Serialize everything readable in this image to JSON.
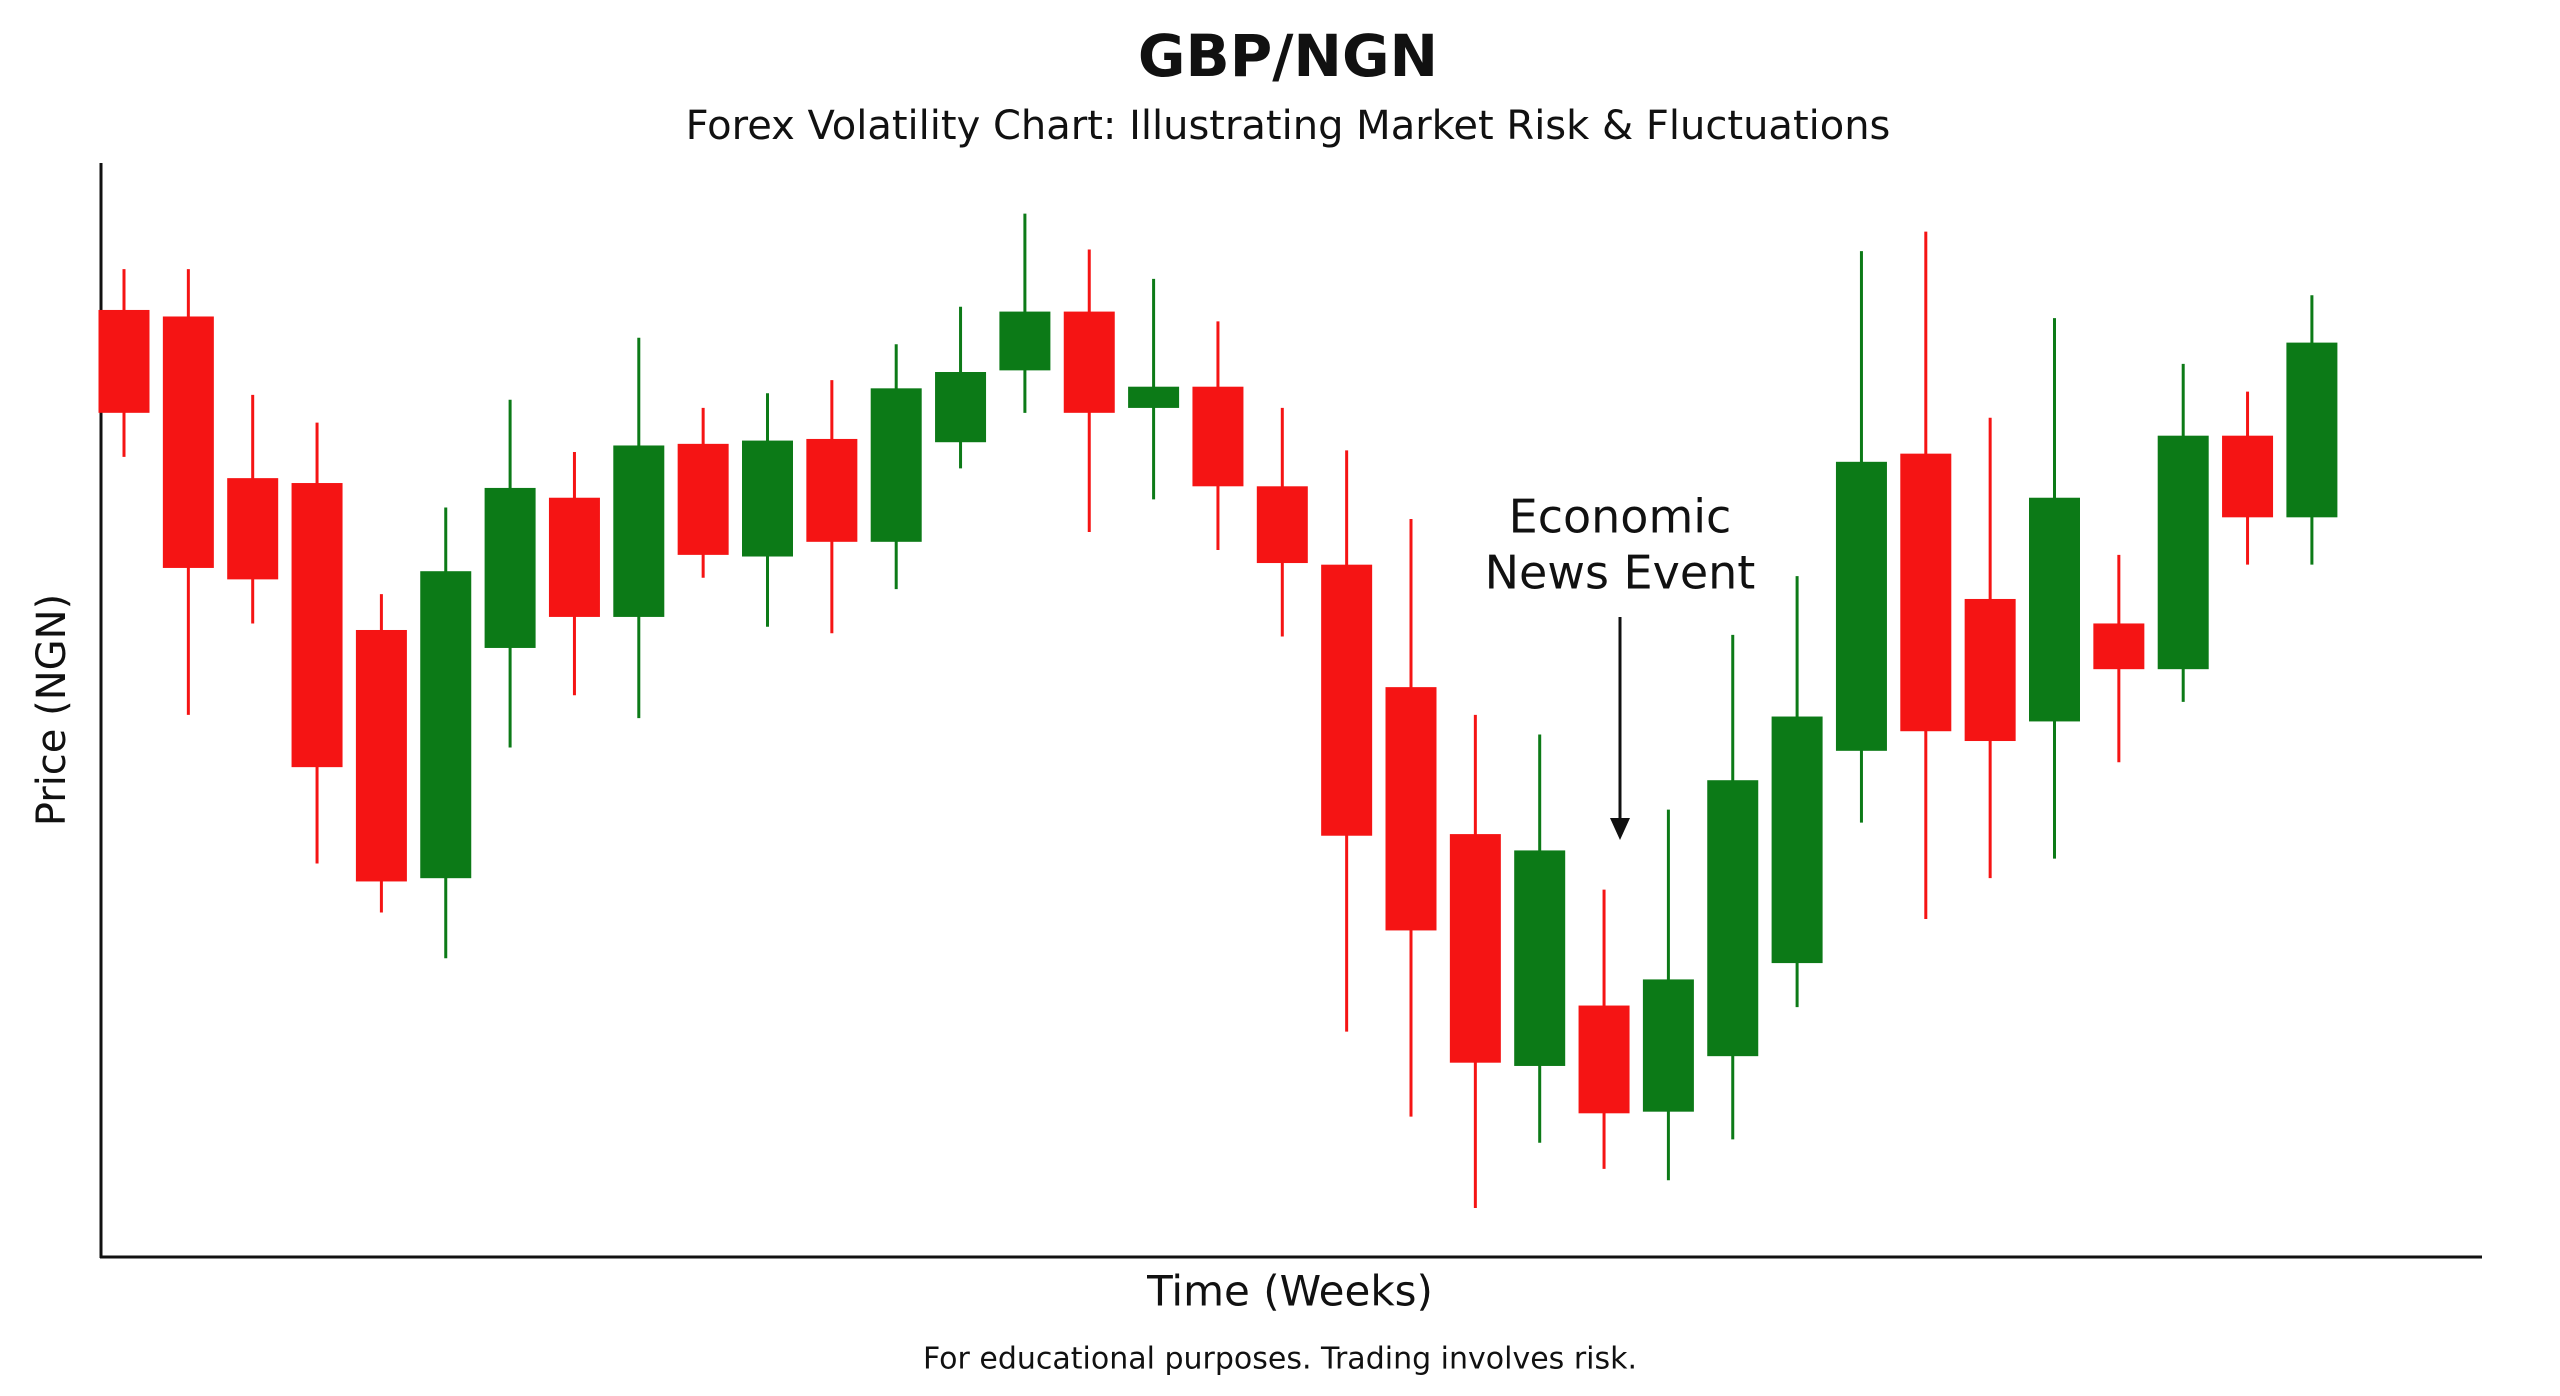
{
  "chart_data": {
    "type": "candlestick",
    "title": "GBP/NGN",
    "subtitle": "Forex Volatility Chart: Illustrating Market Risk & Fluctuations",
    "x_label": "Time (Weeks)",
    "y_label": "Price (NGN)",
    "note": "For educational purposes. Trading involves risk.",
    "annotation": [
      "Economic",
      "News Event"
    ],
    "up_color": "#0c7a17",
    "down_color": "#f51414",
    "ylim": [
      0,
      670
    ],
    "open": [
      580,
      576,
      477,
      474,
      384,
      232,
      373,
      465,
      392,
      498,
      429,
      501,
      438,
      499,
      543,
      579,
      520,
      533,
      472,
      424,
      349,
      259,
      117,
      154,
      89,
      123,
      180,
      310,
      492,
      403,
      328,
      388,
      360,
      503,
      453
    ],
    "high": [
      605,
      605,
      528,
      511,
      406,
      459,
      525,
      493,
      563,
      520,
      529,
      537,
      559,
      582,
      639,
      617,
      599,
      573,
      520,
      494,
      452,
      332,
      320,
      225,
      274,
      381,
      417,
      616,
      628,
      514,
      575,
      430,
      547,
      530,
      589
    ],
    "low": [
      490,
      332,
      388,
      241,
      211,
      183,
      312,
      344,
      330,
      416,
      386,
      382,
      409,
      483,
      517,
      444,
      464,
      433,
      380,
      138,
      86,
      30,
      70,
      54,
      47,
      72,
      153,
      266,
      207,
      232,
      244,
      303,
      340,
      424,
      424
    ],
    "close": [
      517,
      422,
      415,
      300,
      230,
      420,
      471,
      392,
      497,
      430,
      500,
      438,
      532,
      542,
      579,
      517,
      533,
      472,
      425,
      258,
      200,
      119,
      249,
      88,
      170,
      292,
      331,
      487,
      322,
      316,
      465,
      360,
      503,
      453,
      560
    ]
  }
}
